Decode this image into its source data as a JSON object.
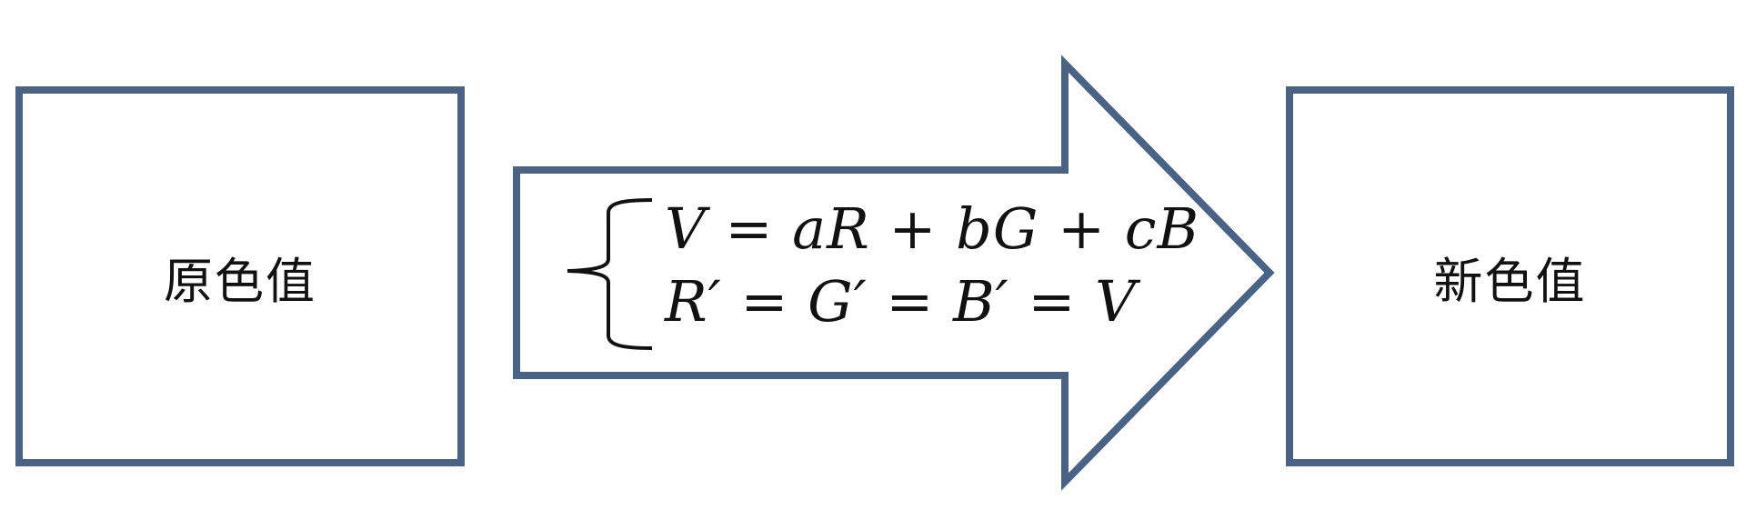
{
  "diagram": {
    "source_label": "原色值",
    "target_label": "新色值",
    "equations": [
      "V = aR + bG + cB",
      "R′ = G′ = B′ = V"
    ]
  },
  "colors": {
    "stroke": "#4a6283",
    "text": "#111111",
    "background": "#ffffff"
  }
}
